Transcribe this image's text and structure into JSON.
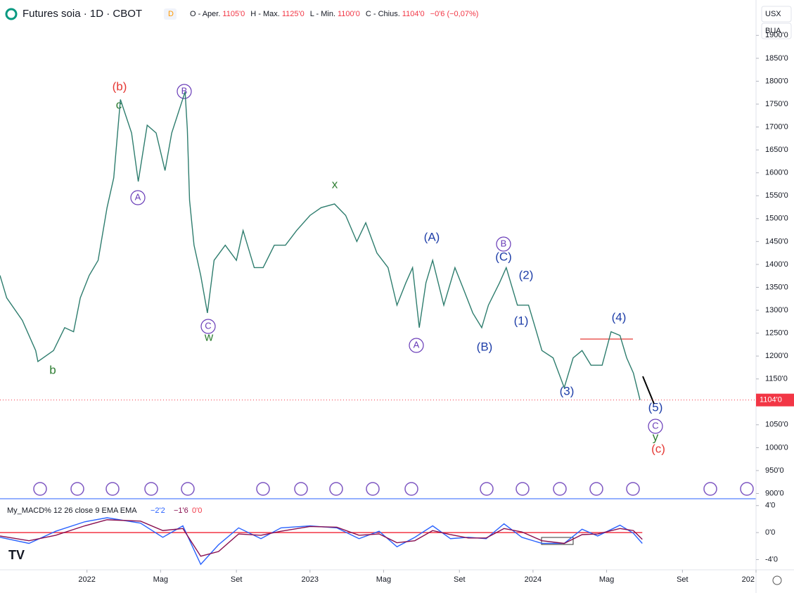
{
  "header": {
    "title": "Futures soia · 1D · CBOT",
    "badge": "D",
    "ohlc": [
      "O - Aper.",
      "1105'0",
      "H - Max.",
      "1125'0",
      "L - Min.",
      "1100'0",
      "C - Chius.",
      "1104'0",
      "−0'6 (−0,07%)"
    ],
    "currency": "USX",
    "unit": "BUA"
  },
  "chart_data": [
    {
      "type": "line",
      "color": "#2e7d6e",
      "x": [
        2021.61,
        2021.64,
        2021.71,
        2021.77,
        2021.78,
        2021.85,
        2021.9,
        2021.94,
        2021.97,
        2022.01,
        2022.05,
        2022.09,
        2022.12,
        2022.15,
        2022.2,
        2022.23,
        2022.27,
        2022.31,
        2022.35,
        2022.38,
        2022.44,
        2022.45,
        2022.46,
        2022.48,
        2022.51,
        2022.54,
        2022.57,
        2022.62,
        2022.67,
        2022.7,
        2022.75,
        2022.79,
        2022.84,
        2022.89,
        2022.94,
        2023.0,
        2023.05,
        2023.11,
        2023.16,
        2023.21,
        2023.25,
        2023.3,
        2023.35,
        2023.39,
        2023.43,
        2023.46,
        2023.49,
        2023.52,
        2023.55,
        2023.6,
        2023.65,
        2023.69,
        2023.73,
        2023.77,
        2023.8,
        2023.85,
        2023.88,
        2023.93,
        2023.98,
        2024.01,
        2024.04,
        2024.09,
        2024.14,
        2024.18,
        2024.22,
        2024.26,
        2024.31,
        2024.35,
        2024.39,
        2024.42,
        2024.45,
        2024.48
      ],
      "values": [
        1376,
        1327,
        1278,
        1212,
        1188,
        1212,
        1262,
        1253,
        1327,
        1376,
        1409,
        1524,
        1589,
        1760,
        1687,
        1581,
        1704,
        1687,
        1605,
        1687,
        1777,
        1695,
        1540,
        1442,
        1376,
        1294,
        1409,
        1442,
        1409,
        1474,
        1393,
        1393,
        1442,
        1442,
        1474,
        1507,
        1524,
        1532,
        1507,
        1450,
        1491,
        1425,
        1393,
        1311,
        1360,
        1393,
        1262,
        1360,
        1409,
        1311,
        1393,
        1344,
        1294,
        1262,
        1311,
        1360,
        1393,
        1311,
        1311,
        1262,
        1212,
        1196,
        1131,
        1196,
        1212,
        1180,
        1180,
        1253,
        1245,
        1196,
        1163,
        1104
      ],
      "xlim": [
        2021.61,
        2025.0
      ],
      "ylim": [
        890,
        1965
      ],
      "xticks": [
        2022,
        {
          "value": 2022.33,
          "label": "Mag"
        },
        {
          "value": 2022.67,
          "label": "Set"
        },
        2023,
        {
          "value": 2023.33,
          "label": "Mag"
        },
        {
          "value": 2023.67,
          "label": "Set"
        },
        2024,
        {
          "value": 2024.33,
          "label": "Mag"
        },
        {
          "value": 2024.67,
          "label": "Set"
        },
        {
          "value": 2025,
          "label": "202"
        }
      ],
      "yticks": [
        {
          "value": 900,
          "label": "900'0"
        },
        {
          "value": 950,
          "label": "950'0"
        },
        {
          "value": 1000,
          "label": "1000'0"
        },
        {
          "value": 1050,
          "label": "1050'0"
        },
        {
          "value": 1100,
          "label": "1100'0"
        },
        {
          "value": 1150,
          "label": "1150'0"
        },
        {
          "value": 1200,
          "label": "1200'0"
        },
        {
          "value": 1250,
          "label": "1250'0"
        },
        {
          "value": 1300,
          "label": "1300'0"
        },
        {
          "value": 1350,
          "label": "1350'0"
        },
        {
          "value": 1400,
          "label": "1400'0"
        },
        {
          "value": 1450,
          "label": "1450'0"
        },
        {
          "value": 1500,
          "label": "1500'0"
        },
        {
          "value": 1550,
          "label": "1550'0"
        },
        {
          "value": 1600,
          "label": "1600'0"
        },
        {
          "value": 1650,
          "label": "1650'0"
        },
        {
          "value": 1700,
          "label": "1700'0"
        },
        {
          "value": 1750,
          "label": "1750'0"
        },
        {
          "value": 1800,
          "label": "1800'0"
        },
        {
          "value": 1850,
          "label": "1850'0"
        },
        {
          "value": 1900,
          "label": "1900'0"
        }
      ],
      "last_price": {
        "value": 1104,
        "label": "1104'0"
      },
      "annotations": [
        "(b)",
        "c",
        "B",
        "A",
        "x",
        "C",
        "w",
        "b",
        "(A)",
        "B",
        "(C)",
        "(2)",
        "(1)",
        "A",
        "(B)",
        "(3)",
        "(4)",
        "(5)",
        "C",
        "y",
        "(c)"
      ]
    },
    {
      "type": "line",
      "title": "My_MACD% 12 26 close 9 EMA EMA",
      "readouts": [
        "−2'2",
        "−1'6",
        "0'0"
      ],
      "x": [
        2021.61,
        2021.74,
        2021.86,
        2021.99,
        2022.09,
        2022.24,
        2022.34,
        2022.43,
        2022.51,
        2022.59,
        2022.68,
        2022.78,
        2022.87,
        2023.0,
        2023.12,
        2023.22,
        2023.31,
        2023.39,
        2023.47,
        2023.55,
        2023.63,
        2023.71,
        2023.79,
        2023.87,
        2023.95,
        2024.04,
        2024.14,
        2024.22,
        2024.29,
        2024.39,
        2024.45,
        2024.49
      ],
      "series": [
        {
          "color": "#2962ff",
          "values": [
            -0.7,
            -1.6,
            0.2,
            1.6,
            2.2,
            1.4,
            -0.7,
            1.0,
            -4.7,
            -1.8,
            0.7,
            -0.9,
            0.7,
            1.0,
            0.7,
            -0.9,
            0.2,
            -2.1,
            -0.7,
            1.0,
            -0.9,
            -0.7,
            -0.9,
            1.3,
            -0.7,
            -1.6,
            -1.6,
            0.5,
            -0.5,
            1.1,
            -0.1,
            -1.6
          ]
        },
        {
          "color": "#880e4f",
          "values": [
            -0.5,
            -1.2,
            -0.4,
            1.0,
            1.9,
            1.7,
            0.3,
            0.6,
            -3.5,
            -2.8,
            -0.2,
            -0.4,
            0.2,
            0.9,
            0.8,
            -0.4,
            -0.2,
            -1.5,
            -1.2,
            0.3,
            -0.3,
            -0.8,
            -0.8,
            0.6,
            0.1,
            -1.2,
            -1.6,
            -0.3,
            -0.2,
            0.6,
            0.3,
            -1.0
          ]
        }
      ],
      "ylim": [
        -5.3,
        4.7
      ],
      "yticks": [
        {
          "value": 4,
          "label": "4'0"
        },
        {
          "value": 0,
          "label": "0'0"
        },
        {
          "value": -4,
          "label": "-4'0"
        }
      ]
    }
  ]
}
